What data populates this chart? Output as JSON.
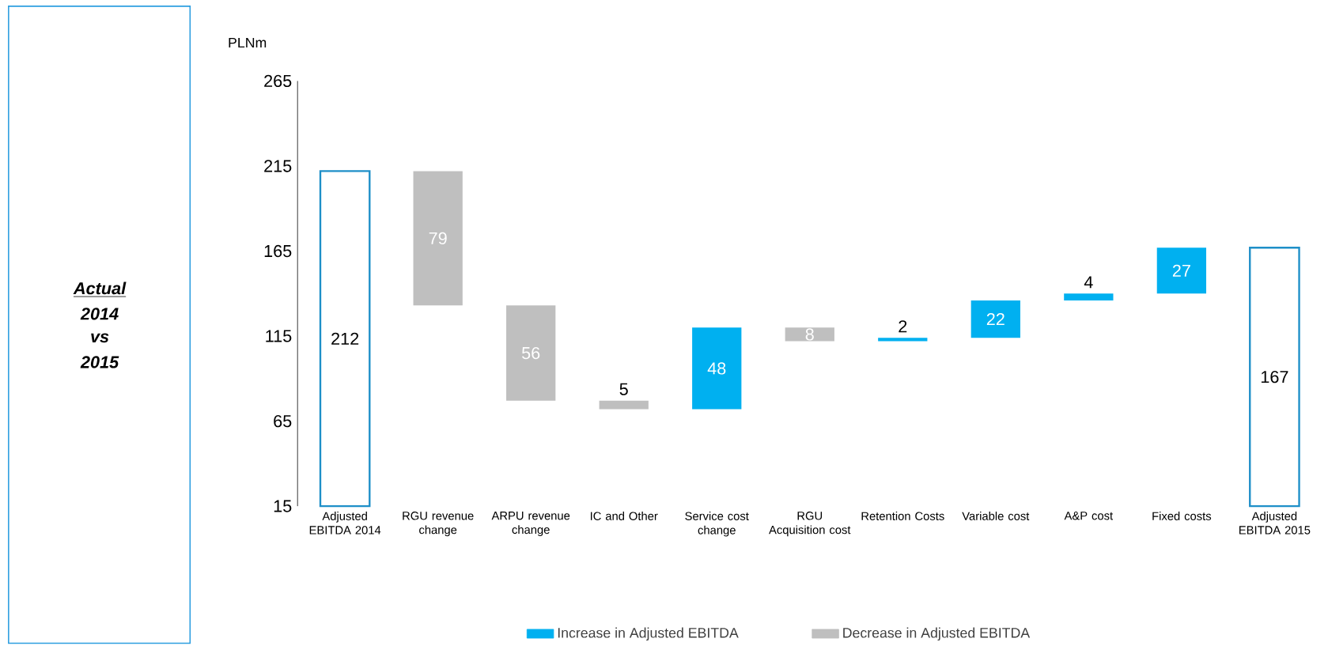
{
  "chart_data": {
    "type": "bar",
    "ylabel": "PLNm",
    "categories": [
      "Adjusted EBITDA 2014",
      "RGU revenue change",
      "ARPU revenue change",
      "IC and Other",
      "Service cost change",
      "RGU Acquisition cost",
      "Retention Costs",
      "Variable cost",
      "A&P cost",
      "Fixed costs",
      "Adjusted EBITDA 2015"
    ],
    "series": [
      {
        "color": "#1e8fc8",
        "values": [
          212,
          null,
          null,
          null,
          null,
          null,
          null,
          null,
          null,
          null,
          167
        ]
      },
      {
        "name": "Increase in Adjusted EBITDA",
        "color": "#00b0f0",
        "base": [
          null,
          null,
          null,
          null,
          72,
          null,
          112,
          114,
          136,
          140,
          null
        ],
        "values": [
          null,
          null,
          null,
          null,
          48,
          null,
          2,
          22,
          4,
          27,
          null
        ]
      },
      {
        "name": "Decrease in Adjusted EBITDA",
        "color": "#bfbfbf",
        "base": [
          null,
          133,
          77,
          72,
          null,
          112,
          null,
          null,
          null,
          null,
          null
        ],
        "values": [
          null,
          79,
          56,
          5,
          null,
          8,
          null,
          null,
          null,
          null,
          null
        ]
      }
    ],
    "data_labels": true,
    "ylim": [
      15,
      265
    ],
    "yticks": [
      15,
      65,
      115,
      165,
      215,
      265
    ],
    "legend": "bottom",
    "annotations": [
      "Actual",
      "2014",
      "vs",
      "2015"
    ]
  }
}
